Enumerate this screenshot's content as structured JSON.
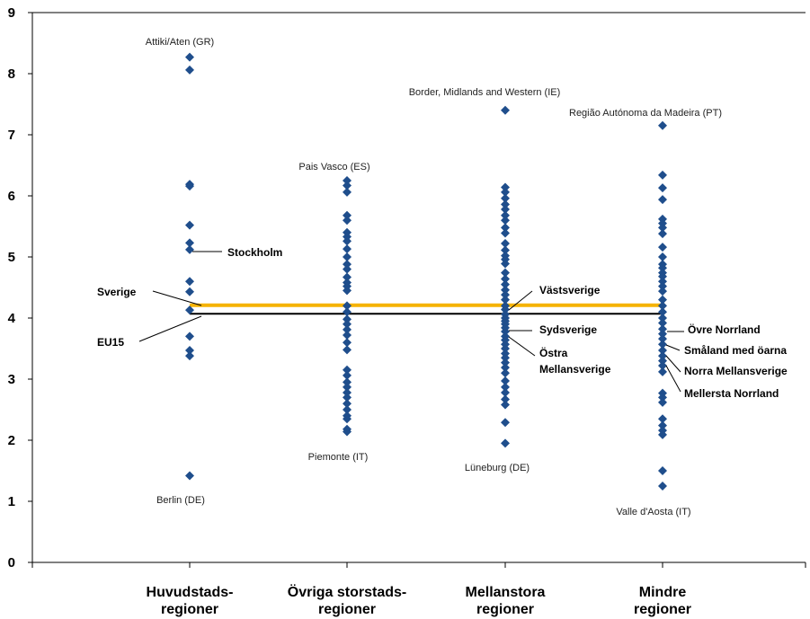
{
  "chart_data": {
    "type": "scatter",
    "title": "",
    "xlabel": "",
    "ylabel": "",
    "ylim": [
      0,
      9
    ],
    "yticks": [
      0,
      1,
      2,
      3,
      4,
      5,
      6,
      7,
      8,
      9
    ],
    "grid": false,
    "marker_color": "#1f4e8c",
    "categories": [
      {
        "line1": "Huvudstads-",
        "line2": "regioner"
      },
      {
        "line1": "Övriga storstads-",
        "line2": "regioner"
      },
      {
        "line1": "Mellanstora",
        "line2": "regioner"
      },
      {
        "line1": "Mindre",
        "line2": "regioner"
      }
    ],
    "points": [
      [
        8.27,
        8.06,
        6.19,
        6.16,
        5.52,
        5.23,
        5.12,
        4.6,
        4.43,
        4.13,
        3.7,
        3.47,
        3.38,
        1.42
      ],
      [
        6.25,
        6.17,
        6.06,
        5.68,
        5.6,
        5.4,
        5.33,
        5.26,
        5.13,
        5.0,
        4.88,
        4.8,
        4.67,
        4.58,
        4.52,
        4.45,
        4.2,
        4.1,
        3.98,
        3.9,
        3.81,
        3.72,
        3.6,
        3.48,
        3.15,
        3.06,
        2.95,
        2.87,
        2.78,
        2.7,
        2.6,
        2.5,
        2.4,
        2.35,
        2.18,
        2.14
      ],
      [
        7.4,
        6.14,
        6.06,
        5.96,
        5.86,
        5.78,
        5.68,
        5.6,
        5.48,
        5.39,
        5.22,
        5.11,
        5.02,
        4.96,
        4.89,
        4.74,
        4.64,
        4.55,
        4.46,
        4.38,
        4.3,
        4.2,
        4.14,
        4.06,
        4.0,
        3.95,
        3.9,
        3.84,
        3.78,
        3.7,
        3.64,
        3.57,
        3.5,
        3.42,
        3.35,
        3.27,
        3.19,
        3.1,
        2.97,
        2.87,
        2.78,
        2.67,
        2.58,
        2.29,
        1.95
      ],
      [
        7.15,
        6.34,
        6.13,
        5.94,
        5.62,
        5.55,
        5.48,
        5.38,
        5.16,
        5.0,
        4.88,
        4.82,
        4.74,
        4.68,
        4.6,
        4.52,
        4.44,
        4.3,
        4.2,
        4.1,
        4.0,
        3.92,
        3.82,
        3.74,
        3.66,
        3.57,
        3.47,
        3.38,
        3.3,
        3.22,
        3.12,
        2.77,
        2.7,
        2.62,
        2.35,
        2.24,
        2.16,
        2.09,
        1.5,
        1.25
      ]
    ],
    "lines": [
      {
        "name": "Sverige",
        "value": 4.21,
        "color": "#f5b300"
      },
      {
        "name": "EU15",
        "value": 4.07,
        "color": "#000000"
      }
    ],
    "annotations": [
      {
        "text": "Attiki/Aten (GR)",
        "bold": false
      },
      {
        "text": "Berlin (DE)",
        "bold": false
      },
      {
        "text": "Pais Vasco (ES)",
        "bold": false
      },
      {
        "text": "Piemonte (IT)",
        "bold": false
      },
      {
        "text": "Border, Midlands and Western (IE)",
        "bold": false
      },
      {
        "text": "Lüneburg (DE)",
        "bold": false
      },
      {
        "text": "Região Autónoma da Madeira (PT)",
        "bold": false
      },
      {
        "text": "Valle d'Aosta (IT)",
        "bold": false
      },
      {
        "text": "Stockholm",
        "bold": true
      },
      {
        "text": "Sverige",
        "bold": true
      },
      {
        "text": "EU15",
        "bold": true
      },
      {
        "text": "Västsverige",
        "bold": true
      },
      {
        "text": "Sydsverige",
        "bold": true
      },
      {
        "text": "Östra",
        "bold": true
      },
      {
        "text": "Mellansverige",
        "bold": true
      },
      {
        "text": "Övre Norrland",
        "bold": true
      },
      {
        "text": "Småland med öarna",
        "bold": true
      },
      {
        "text": "Norra Mellansverige",
        "bold": true
      },
      {
        "text": "Mellersta Norrland",
        "bold": true
      }
    ]
  }
}
